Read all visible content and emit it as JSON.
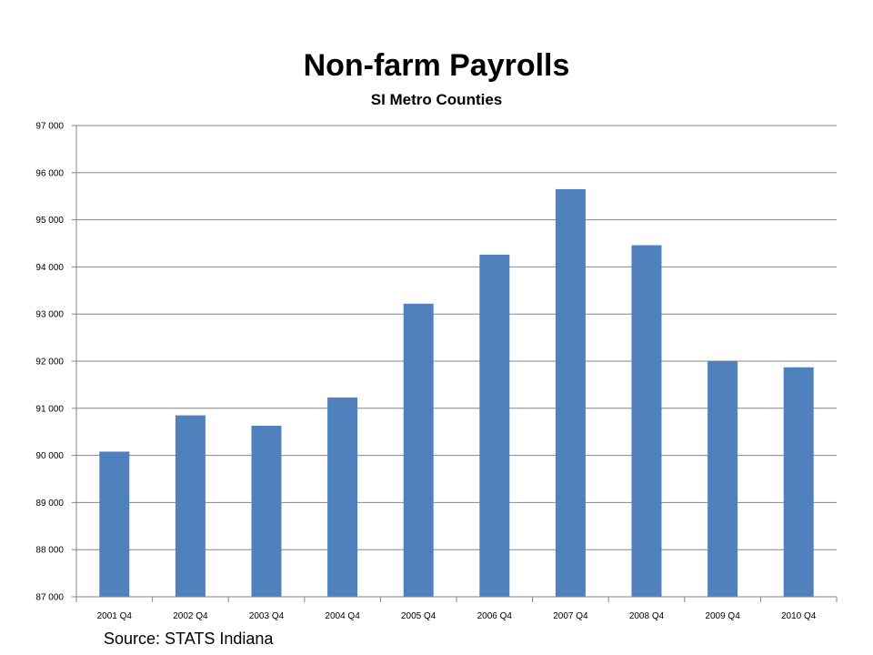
{
  "chart_data": {
    "type": "bar",
    "title": "Non-farm Payrolls",
    "subtitle": "SI Metro Counties",
    "xlabel": "",
    "ylabel": "",
    "categories": [
      "2001 Q4",
      "2002 Q4",
      "2003 Q4",
      "2004 Q4",
      "2005 Q4",
      "2006 Q4",
      "2007 Q4",
      "2008 Q4",
      "2009 Q4",
      "2010 Q4"
    ],
    "values": [
      90080,
      90850,
      90630,
      91230,
      93220,
      94260,
      95650,
      94460,
      92000,
      91870
    ],
    "ylim": [
      87000,
      97000
    ],
    "yticks": [
      87000,
      88000,
      89000,
      90000,
      91000,
      92000,
      93000,
      94000,
      95000,
      96000,
      97000
    ],
    "ytick_labels": [
      "87 000",
      "88 000",
      "89 000",
      "90 000",
      "91 000",
      "92 000",
      "93 000",
      "94 000",
      "95 000",
      "96 000",
      "97 000"
    ],
    "grid": true,
    "legend": "none",
    "bar_color": "#4f81bd"
  },
  "source_note": "Source:  STATS Indiana"
}
